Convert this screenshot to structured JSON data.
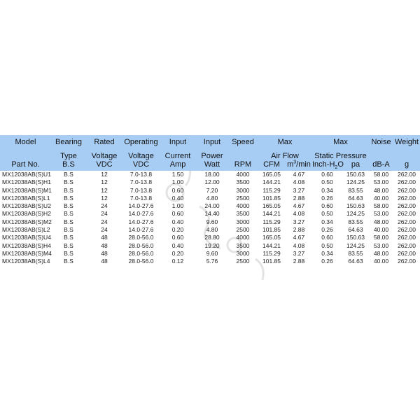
{
  "header": {
    "row1": [
      "Model",
      "Bearing",
      "Rated",
      "Operating",
      "Input",
      "Input",
      "Speed",
      "Max",
      "Max",
      "Noise",
      "Weight"
    ],
    "row2": [
      "",
      "Type",
      "Voltage",
      "Voltage",
      "Current",
      "Power",
      "",
      "Air Flow",
      "Static Pressure",
      "",
      ""
    ],
    "row3": [
      "Part No.",
      "B.S",
      "VDC",
      "VDC",
      "Amp",
      "Watt",
      "RPM",
      "CFM",
      "m",
      "3",
      "/min",
      "Inch-H",
      "2",
      "O",
      "pa",
      "dB-A",
      "g"
    ]
  },
  "rows": [
    [
      "MX12038AB(S)U1",
      "B.S",
      "12",
      "7.0-13.8",
      "1.50",
      "18.00",
      "4000",
      "165.05",
      "4.67",
      "0.60",
      "150.63",
      "58.00",
      "262.00"
    ],
    [
      "MX12038AB(S)H1",
      "B.S",
      "12",
      "7.0-13.8",
      "1.00",
      "12.00",
      "3500",
      "144.21",
      "4.08",
      "0.50",
      "124.25",
      "53.00",
      "262.00"
    ],
    [
      "MX12038AB(S)M1",
      "B.S",
      "12",
      "7.0-13.8",
      "0.60",
      "7.20",
      "3000",
      "115.29",
      "3.27",
      "0.34",
      "83.55",
      "48.00",
      "262.00"
    ],
    [
      "MX12038AB(S)L1",
      "B.S",
      "12",
      "7.0-13.8",
      "0.40",
      "4.80",
      "2500",
      "101.85",
      "2.88",
      "0.26",
      "64.63",
      "40.00",
      "262.00"
    ],
    [
      "MX12038AB(S)U2",
      "B.S",
      "24",
      "14.0-27.6",
      "1.00",
      "24.00",
      "4000",
      "165.05",
      "4.67",
      "0.60",
      "150.63",
      "58.00",
      "262.00"
    ],
    [
      "MX12038AB(S)H2",
      "B.S",
      "24",
      "14.0-27.6",
      "0.60",
      "14.40",
      "3500",
      "144.21",
      "4.08",
      "0.50",
      "124.25",
      "53.00",
      "262.00"
    ],
    [
      "MX12038AB(S)M2",
      "B.S",
      "24",
      "14.0-27.6",
      "0.40",
      "9.60",
      "3000",
      "115.29",
      "3.27",
      "0.34",
      "83.55",
      "48.00",
      "262.00"
    ],
    [
      "MX12038AB(S)L2",
      "B.S",
      "24",
      "14.0-27.6",
      "0.20",
      "4.80",
      "2500",
      "101.85",
      "2.88",
      "0.26",
      "64.63",
      "40.00",
      "262.00"
    ],
    [
      "MX12038AB(S)U4",
      "B.S",
      "48",
      "28.0-56.0",
      "0.60",
      "28.80",
      "4000",
      "165.05",
      "4.67",
      "0.60",
      "150.63",
      "58.00",
      "262.00"
    ],
    [
      "MX12038AB(S)H4",
      "B.S",
      "48",
      "28.0-56.0",
      "0.40",
      "19.20",
      "3500",
      "144.21",
      "4.08",
      "0.50",
      "124.25",
      "53.00",
      "262.00"
    ],
    [
      "MX12038AB(S)M4",
      "B.S",
      "48",
      "28.0-56.0",
      "0.20",
      "9.60",
      "3000",
      "115.29",
      "3.27",
      "0.34",
      "83.55",
      "48.00",
      "262.00"
    ],
    [
      "MX12038AB(S)L4",
      "B.S",
      "48",
      "28.0-56.0",
      "0.12",
      "5.76",
      "2500",
      "101.85",
      "2.88",
      "0.26",
      "64.63",
      "40.00",
      "262.00"
    ]
  ],
  "colors": {
    "header_bg": "#a8cdf4",
    "text": "#222222"
  }
}
